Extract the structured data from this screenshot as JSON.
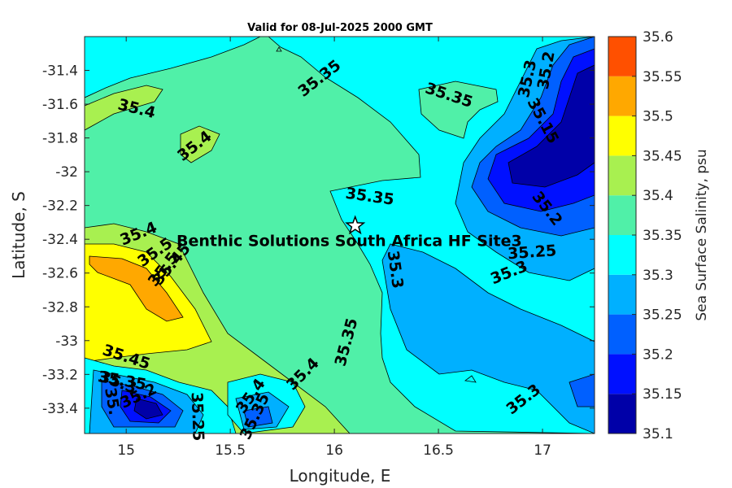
{
  "chart_data": {
    "type": "contour",
    "title": "Valid for 08-Jul-2025 2000 GMT",
    "xlabel": "Longitude, E",
    "ylabel": "Latitude, S",
    "xlim": [
      14.8,
      17.25
    ],
    "ylim": [
      -33.55,
      -31.2
    ],
    "xticks": [
      15,
      15.5,
      16,
      16.5,
      17
    ],
    "xtick_labels": [
      "15",
      "15.5",
      "16",
      "16.5",
      "17"
    ],
    "yticks": [
      -31.4,
      -31.6,
      -31.8,
      -32,
      -32.2,
      -32.4,
      -32.6,
      -32.8,
      -33,
      -33.2,
      -33.4
    ],
    "ytick_labels": [
      "-31.4",
      "-31.6",
      "-31.8",
      "-32",
      "-32.2",
      "-32.4",
      "-32.6",
      "-32.8",
      "-33",
      "-33.2",
      "-33.4"
    ],
    "colorbar": {
      "label": "Sea Surface Salinity, psu",
      "range": [
        35.1,
        35.6
      ],
      "ticks": [
        35.1,
        35.15,
        35.2,
        35.25,
        35.3,
        35.35,
        35.4,
        35.45,
        35.5,
        35.55,
        35.6
      ],
      "tick_labels": [
        "35.1",
        "35.15",
        "35.2",
        "35.25",
        "35.3",
        "35.35",
        "35.4",
        "35.45",
        "35.5",
        "35.55",
        "35.6"
      ],
      "colors": [
        "#0000a8",
        "#0010ff",
        "#0060ff",
        "#00b0ff",
        "#00ffff",
        "#50f0a8",
        "#a8f050",
        "#ffff00",
        "#ffa800",
        "#ff5000"
      ]
    },
    "site": {
      "label": "Benthic Solutions South Africa HF Site3",
      "lon": 16.1,
      "lat": -32.32
    },
    "contour_labels": [
      {
        "text": "35.35",
        "lon": 15.93,
        "lat": -31.45,
        "angle": 38
      },
      {
        "text": "35.35",
        "lon": 16.55,
        "lat": -31.55,
        "angle": -18
      },
      {
        "text": "35.3",
        "lon": 16.93,
        "lat": -31.45,
        "angle": 78
      },
      {
        "text": "35.2",
        "lon": 17.02,
        "lat": -31.4,
        "angle": 80
      },
      {
        "text": "35.15",
        "lon": 17.0,
        "lat": -31.7,
        "angle": -62
      },
      {
        "text": "35.4",
        "lon": 15.05,
        "lat": -31.63,
        "angle": -14
      },
      {
        "text": "35.4",
        "lon": 15.33,
        "lat": -31.85,
        "angle": 38
      },
      {
        "text": "35.35",
        "lon": 16.17,
        "lat": -32.15,
        "angle": -8
      },
      {
        "text": "35.2",
        "lon": 17.02,
        "lat": -32.22,
        "angle": -52
      },
      {
        "text": "35.25",
        "lon": 16.95,
        "lat": -32.48,
        "angle": 4
      },
      {
        "text": "35.3",
        "lon": 16.84,
        "lat": -32.6,
        "angle": 22
      },
      {
        "text": "35.3",
        "lon": 16.29,
        "lat": -32.58,
        "angle": -82
      },
      {
        "text": "35.4",
        "lon": 15.06,
        "lat": -32.37,
        "angle": 22
      },
      {
        "text": "35.5",
        "lon": 15.14,
        "lat": -32.48,
        "angle": 35
      },
      {
        "text": "35.45",
        "lon": 15.22,
        "lat": -32.55,
        "angle": 50
      },
      {
        "text": "35.5",
        "lon": 15.18,
        "lat": -32.58,
        "angle": 52
      },
      {
        "text": "35.35",
        "lon": 16.06,
        "lat": -33.01,
        "angle": 75
      },
      {
        "text": "35.4",
        "lon": 15.85,
        "lat": -33.2,
        "angle": 45
      },
      {
        "text": "35.45",
        "lon": 15.0,
        "lat": -33.1,
        "angle": -18
      },
      {
        "text": "35.35",
        "lon": 14.98,
        "lat": -33.24,
        "angle": -10
      },
      {
        "text": "35.3",
        "lon": 14.96,
        "lat": -33.25,
        "angle": -20
      },
      {
        "text": "35.2",
        "lon": 15.06,
        "lat": -33.33,
        "angle": 25
      },
      {
        "text": "35.",
        "lon": 14.93,
        "lat": -33.36,
        "angle": -80
      },
      {
        "text": "35.25",
        "lon": 15.34,
        "lat": -33.45,
        "angle": -88
      },
      {
        "text": "35.4",
        "lon": 15.6,
        "lat": -33.33,
        "angle": 55
      },
      {
        "text": "35.35",
        "lon": 15.62,
        "lat": -33.45,
        "angle": 65
      },
      {
        "text": "35.3",
        "lon": 16.91,
        "lat": -33.35,
        "angle": 38
      }
    ]
  }
}
